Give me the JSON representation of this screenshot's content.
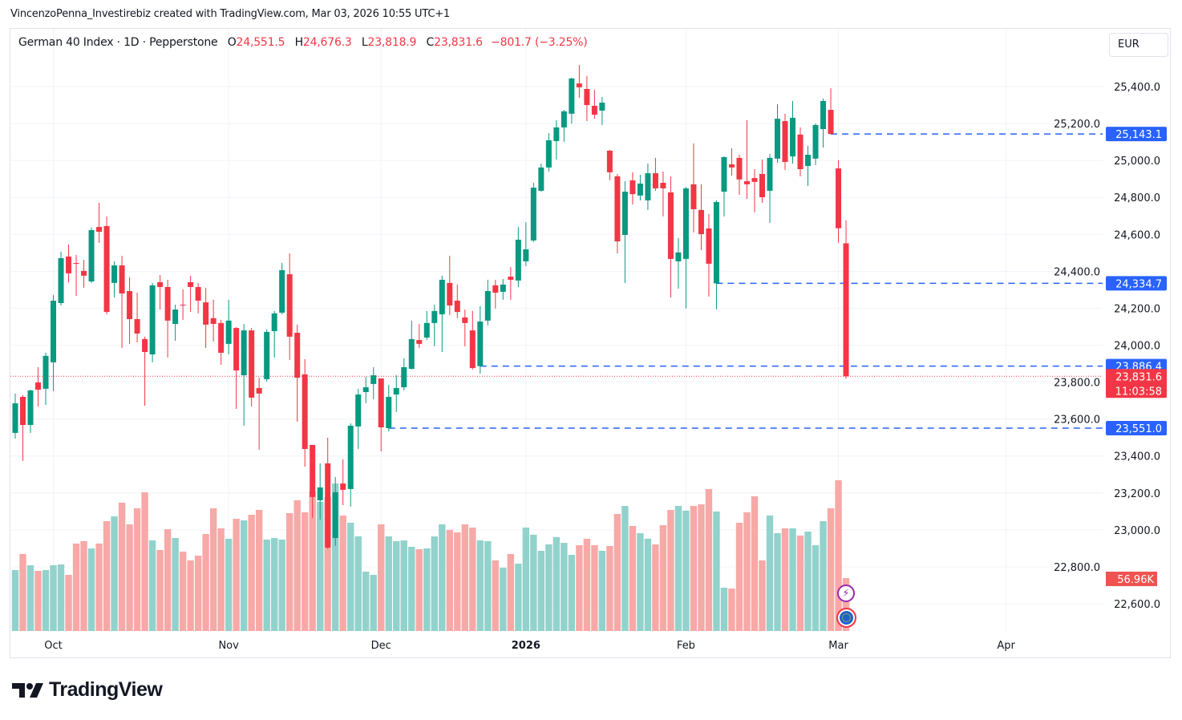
{
  "attribution": "VincenzoPenna_Investirebiz created with TradingView.com, Mar 03, 2026 10:55 UTC+1",
  "legend": {
    "symbol": "German 40 Index · 1D · Pepperstone",
    "open_label": "O",
    "open": "24,551.5",
    "high_label": "H",
    "high": "24,676.3",
    "low_label": "L",
    "low": "23,818.9",
    "close_label": "C",
    "close": "23,831.6",
    "change": "−801.7 (−3.25%)"
  },
  "currency_button": "EUR",
  "logo_text": "TradingView",
  "colors": {
    "up": "#089981",
    "down": "#f23645",
    "vol_up": "#92d2cc",
    "vol_down": "#f7a9a7",
    "level_line": "#2962ff",
    "grid": "#f0f3fa"
  },
  "icons": {
    "event_1": "lightning-icon",
    "event_2": "eu-flag-icon"
  },
  "chart_data": {
    "type": "candlestick",
    "symbol": "German 40 Index",
    "interval": "1D",
    "ylim": [
      22500,
      25560
    ],
    "grid": true,
    "y_ticks": [
      22600,
      22800,
      23000,
      23200,
      23400,
      23600,
      23800,
      24000,
      24200,
      24400,
      24600,
      24800,
      25000,
      25200,
      25400
    ],
    "y_tick_labels": [
      "22,600.0",
      "22,800.0",
      "23,000.0",
      "23,200.0",
      "23,400.0",
      "23,600.0",
      "23,800.0",
      "24,000.0",
      "24,200.0",
      "24,400.0",
      "24,600.0",
      "24,800.0",
      "25,000.0",
      "25,200.0",
      "25,400.0"
    ],
    "x_ticks": [
      {
        "label": "Oct",
        "bar": 5,
        "bold": false
      },
      {
        "label": "Nov",
        "bar": 28,
        "bold": false
      },
      {
        "label": "Dec",
        "bar": 48,
        "bold": false
      },
      {
        "label": "2026",
        "bar": 67,
        "bold": true
      },
      {
        "label": "Feb",
        "bar": 88,
        "bold": false
      },
      {
        "label": "Mar",
        "bar": 108,
        "bold": false
      },
      {
        "label": "Apr",
        "bar": 130,
        "bold": false
      }
    ],
    "ohlc": [
      [
        23525,
        23738,
        23494,
        23685
      ],
      [
        23720,
        23729,
        23373,
        23568
      ],
      [
        23568,
        23759,
        23525,
        23755
      ],
      [
        23798,
        23881,
        23668,
        23759
      ],
      [
        23764,
        23959,
        23677,
        23942
      ],
      [
        23907,
        24271,
        23751,
        24241
      ],
      [
        24228,
        24506,
        24215,
        24471
      ],
      [
        24480,
        24545,
        24341,
        24389
      ],
      [
        24445,
        24489,
        24267,
        24441
      ],
      [
        24402,
        24462,
        24311,
        24376
      ],
      [
        24345,
        24636,
        24337,
        24623
      ],
      [
        24640,
        24771,
        24554,
        24614
      ],
      [
        24645,
        24697,
        24167,
        24180
      ],
      [
        24337,
        24454,
        24258,
        24432
      ],
      [
        24432,
        24484,
        23985,
        24280
      ],
      [
        24293,
        24367,
        24007,
        24141
      ],
      [
        24141,
        24284,
        24015,
        24063
      ],
      [
        24033,
        24046,
        23672,
        23963
      ],
      [
        23950,
        24337,
        23907,
        24324
      ],
      [
        24341,
        24380,
        24193,
        24315
      ],
      [
        24315,
        24354,
        23933,
        24133
      ],
      [
        24115,
        24219,
        24024,
        24193
      ],
      [
        24219,
        24302,
        24137,
        24215
      ],
      [
        24341,
        24376,
        24180,
        24315
      ],
      [
        24315,
        24337,
        24172,
        24241
      ],
      [
        24232,
        24311,
        23985,
        24111
      ],
      [
        24146,
        24246,
        24020,
        24115
      ],
      [
        24120,
        24137,
        23894,
        23959
      ],
      [
        24007,
        24246,
        23950,
        24133
      ],
      [
        24093,
        24098,
        23655,
        23863
      ],
      [
        23837,
        24115,
        23564,
        24080
      ],
      [
        24080,
        24093,
        23668,
        23716
      ],
      [
        23768,
        23824,
        23434,
        23738
      ],
      [
        23816,
        24085,
        23803,
        24072
      ],
      [
        24076,
        24185,
        23933,
        24172
      ],
      [
        24176,
        24445,
        24167,
        24406
      ],
      [
        24384,
        24497,
        23920,
        24046
      ],
      [
        24067,
        24111,
        23586,
        23824
      ],
      [
        23842,
        23924,
        23342,
        23438
      ],
      [
        23460,
        23460,
        23065,
        23178
      ],
      [
        23160,
        23360,
        23056,
        23230
      ],
      [
        23360,
        23499,
        22895,
        22904
      ],
      [
        22956,
        23286,
        22913,
        23204
      ],
      [
        23251,
        23382,
        23134,
        23217
      ],
      [
        23221,
        23577,
        23125,
        23564
      ],
      [
        23560,
        23764,
        23438,
        23733
      ],
      [
        23746,
        23829,
        23685,
        23772
      ],
      [
        23790,
        23881,
        23707,
        23837
      ],
      [
        23820,
        23820,
        23425,
        23555
      ],
      [
        23551.0,
        23785,
        23533,
        23720
      ],
      [
        23733,
        23837,
        23638,
        23768
      ],
      [
        23772,
        23929,
        23755,
        23881
      ],
      [
        23872,
        24133,
        23868,
        24033
      ],
      [
        24028,
        24115,
        23985,
        24007
      ],
      [
        24041,
        24185,
        24028,
        24120
      ],
      [
        24120,
        24219,
        23994,
        24185
      ],
      [
        24167,
        24376,
        23963,
        24354
      ],
      [
        24337,
        24484,
        24163,
        24215
      ],
      [
        24241,
        24328,
        24146,
        24180
      ],
      [
        24150,
        24193,
        23994,
        24120
      ],
      [
        24080,
        24185,
        23868,
        23876
      ],
      [
        23886.4,
        24211,
        23846,
        24128
      ],
      [
        24133,
        24354,
        24107,
        24293
      ],
      [
        24324,
        24354,
        24198,
        24284
      ],
      [
        24289,
        24358,
        24246,
        24328
      ],
      [
        24371,
        24423,
        24246,
        24354
      ],
      [
        24350,
        24640,
        24315,
        24571
      ],
      [
        24454,
        24666,
        24428,
        24519
      ],
      [
        24567,
        24879,
        24558,
        24853
      ],
      [
        24836,
        24983,
        24831,
        24962
      ],
      [
        24962,
        25148,
        24940,
        25109
      ],
      [
        25105,
        25218,
        25005,
        25179
      ],
      [
        25179,
        25274,
        25101,
        25266
      ],
      [
        25253,
        25448,
        25200,
        25444
      ],
      [
        25417,
        25517,
        25339,
        25396
      ],
      [
        25387,
        25457,
        25213,
        25300
      ],
      [
        25296,
        25383,
        25226,
        25248
      ],
      [
        25270,
        25344,
        25192,
        25313
      ],
      [
        25053,
        25057,
        24892,
        24936
      ],
      [
        24914,
        24927,
        24497,
        24562
      ],
      [
        24597,
        24888,
        24337,
        24831
      ],
      [
        24892,
        24936,
        24762,
        24818
      ],
      [
        24810,
        24923,
        24784,
        24875
      ],
      [
        24784,
        24983,
        24732,
        24931
      ],
      [
        24931,
        25014,
        24836,
        24849
      ],
      [
        24879,
        24940,
        24697,
        24849
      ],
      [
        24827,
        24914,
        24258,
        24467
      ],
      [
        24454,
        24580,
        24306,
        24502
      ],
      [
        24467,
        24857,
        24198,
        24849
      ],
      [
        24871,
        25092,
        24610,
        24736
      ],
      [
        24732,
        24871,
        24515,
        24601
      ],
      [
        24632,
        24710,
        24263,
        24441
      ],
      [
        24334.7,
        24784,
        24193,
        24775
      ],
      [
        24831,
        25022,
        24697,
        25018
      ],
      [
        24979,
        25066,
        24918,
        24962
      ],
      [
        25014,
        25031,
        24814,
        24897
      ],
      [
        24888,
        25218,
        24792,
        24871
      ],
      [
        24905,
        24953,
        24719,
        24884
      ],
      [
        24927,
        25005,
        24771,
        24801
      ],
      [
        24836,
        25036,
        24662,
        25014
      ],
      [
        25010,
        25305,
        24988,
        25226
      ],
      [
        25213,
        25253,
        24949,
        24992
      ],
      [
        25022,
        25322,
        24983,
        25231
      ],
      [
        25140,
        25179,
        24914,
        24953
      ],
      [
        24970,
        25079,
        24862,
        25031
      ],
      [
        25010,
        25200,
        24975,
        25192
      ],
      [
        25170,
        25335,
        25070,
        25322
      ],
      [
        25274,
        25391,
        25143.1,
        25143.1
      ],
      [
        24957,
        25001,
        24554,
        24633.3
      ],
      [
        24551.5,
        24676.3,
        23818.9,
        23831.6
      ]
    ],
    "volume_k": [
      65.6,
      82.9,
      70.8,
      64.7,
      65.6,
      70.8,
      71.6,
      60.4,
      94.1,
      96.7,
      88.9,
      94.1,
      118.2,
      123.4,
      138.1,
      114.8,
      132.1,
      149.3,
      97.5,
      87.2,
      109.6,
      100.1,
      85.4,
      76.0,
      81.1,
      104.4,
      132.1,
      110.5,
      99.3,
      120.8,
      119.1,
      125.1,
      130.3,
      98.4,
      100.1,
      98.4,
      126.9,
      140.7,
      127.7,
      150.2,
      139.0,
      144.1,
      158.8,
      124.3,
      116.5,
      101.8,
      63.9,
      60.4,
      114.8,
      101.8,
      96.7,
      97.5,
      90.6,
      88.0,
      88.9,
      101.8,
      114.8,
      108.8,
      106.2,
      114.8,
      111.3,
      97.5,
      96.7,
      76.0,
      68.2,
      82.9,
      72.5,
      111.3,
      103.6,
      86.3,
      93.2,
      101.0,
      94.9,
      82.0,
      92.4,
      99.3,
      92.4,
      86.3,
      91.5,
      126.0,
      134.6,
      113.1,
      105.3,
      99.3,
      93.2,
      113.9,
      130.3,
      134.6,
      129.5,
      134.6,
      136.4,
      152.8,
      128.6,
      46.6,
      45.7,
      116.5,
      127.7,
      145.0,
      76.0,
      124.3,
      105.3,
      110.5,
      110.5,
      102.7,
      107.0,
      92.4,
      118.2,
      132.1,
      162.3,
      56.96
    ],
    "level_lines": [
      {
        "value": 25143.1,
        "label": "25,143.1",
        "from_bar": 107
      },
      {
        "value": 24334.7,
        "label": "24,334.7",
        "from_bar": 92
      },
      {
        "value": 23886.4,
        "label": "23,886.4",
        "from_bar": 61
      },
      {
        "value": 23551.0,
        "label": "23,551.0",
        "from_bar": 49
      }
    ],
    "last_price": {
      "value": 23831.6,
      "label": "23,831.6",
      "countdown": "11:03:58"
    },
    "last_volume_label": "56.96K"
  }
}
